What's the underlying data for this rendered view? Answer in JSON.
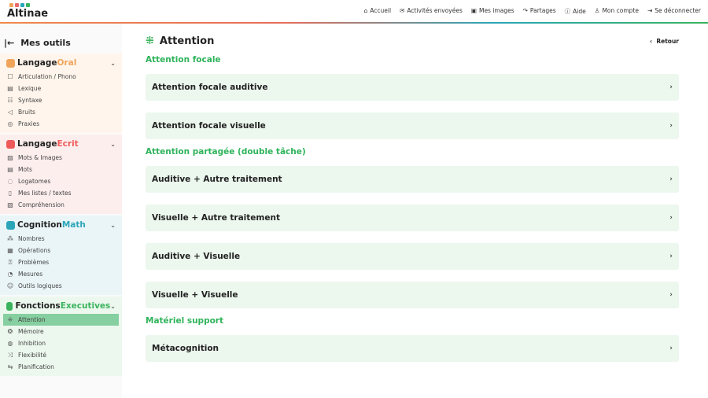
{
  "header": {
    "logo": "Altinae",
    "logo_colors": [
      "#f0a35a",
      "#e86a6a",
      "#2aa6b8",
      "#3bb35d"
    ],
    "nav": [
      {
        "icon": "home-icon",
        "label": "Accueil"
      },
      {
        "icon": "envelope-icon",
        "label": "Activités envoyées"
      },
      {
        "icon": "image-icon",
        "label": "Mes images"
      },
      {
        "icon": "share-icon",
        "label": "Partages"
      },
      {
        "icon": "info-icon",
        "label": "Aide"
      },
      {
        "icon": "user-icon",
        "label": "Mon compte"
      },
      {
        "icon": "logout-icon",
        "label": "Se déconnecter"
      }
    ]
  },
  "sidebar": {
    "title": "Mes outils",
    "sections": [
      {
        "name_a": "Langage",
        "name_b": "Oral",
        "accent": "#f0a35a",
        "bg": "#fff5ec",
        "items": [
          "Articulation / Phono",
          "Lexique",
          "Syntaxe",
          "Bruits",
          "Praxies"
        ]
      },
      {
        "name_a": "Langage",
        "name_b": "Ecrit",
        "accent": "#ee5a5a",
        "bg": "#fdeeee",
        "items": [
          "Mots & Images",
          "Mots",
          "Logatomes",
          "Mes listes / textes",
          "Compréhension"
        ]
      },
      {
        "name_a": "Cognition",
        "name_b": "Math",
        "accent": "#2aa6b8",
        "bg": "#eaf5f8",
        "items": [
          "Nombres",
          "Opérations",
          "Problèmes",
          "Mesures",
          "Outils logiques"
        ]
      },
      {
        "name_a": "Fonctions",
        "name_b": "Executives",
        "accent": "#3bb35d",
        "bg": "#ecf8ee",
        "items": [
          "Attention",
          "Mémoire",
          "Inhibition",
          "Flexibilité",
          "Planification"
        ],
        "active": "Attention"
      }
    ]
  },
  "main": {
    "title": "Attention",
    "back": "Retour",
    "groups": [
      {
        "heading": "Attention focale",
        "cards": [
          "Attention focale auditive",
          "Attention focale visuelle"
        ]
      },
      {
        "heading": "Attention partagée (double tâche)",
        "cards": [
          "Auditive + Autre traitement",
          "Visuelle + Autre traitement",
          "Auditive + Visuelle",
          "Visuelle + Visuelle"
        ]
      },
      {
        "heading": "Matériel support",
        "cards": [
          "Métacognition"
        ]
      }
    ]
  }
}
